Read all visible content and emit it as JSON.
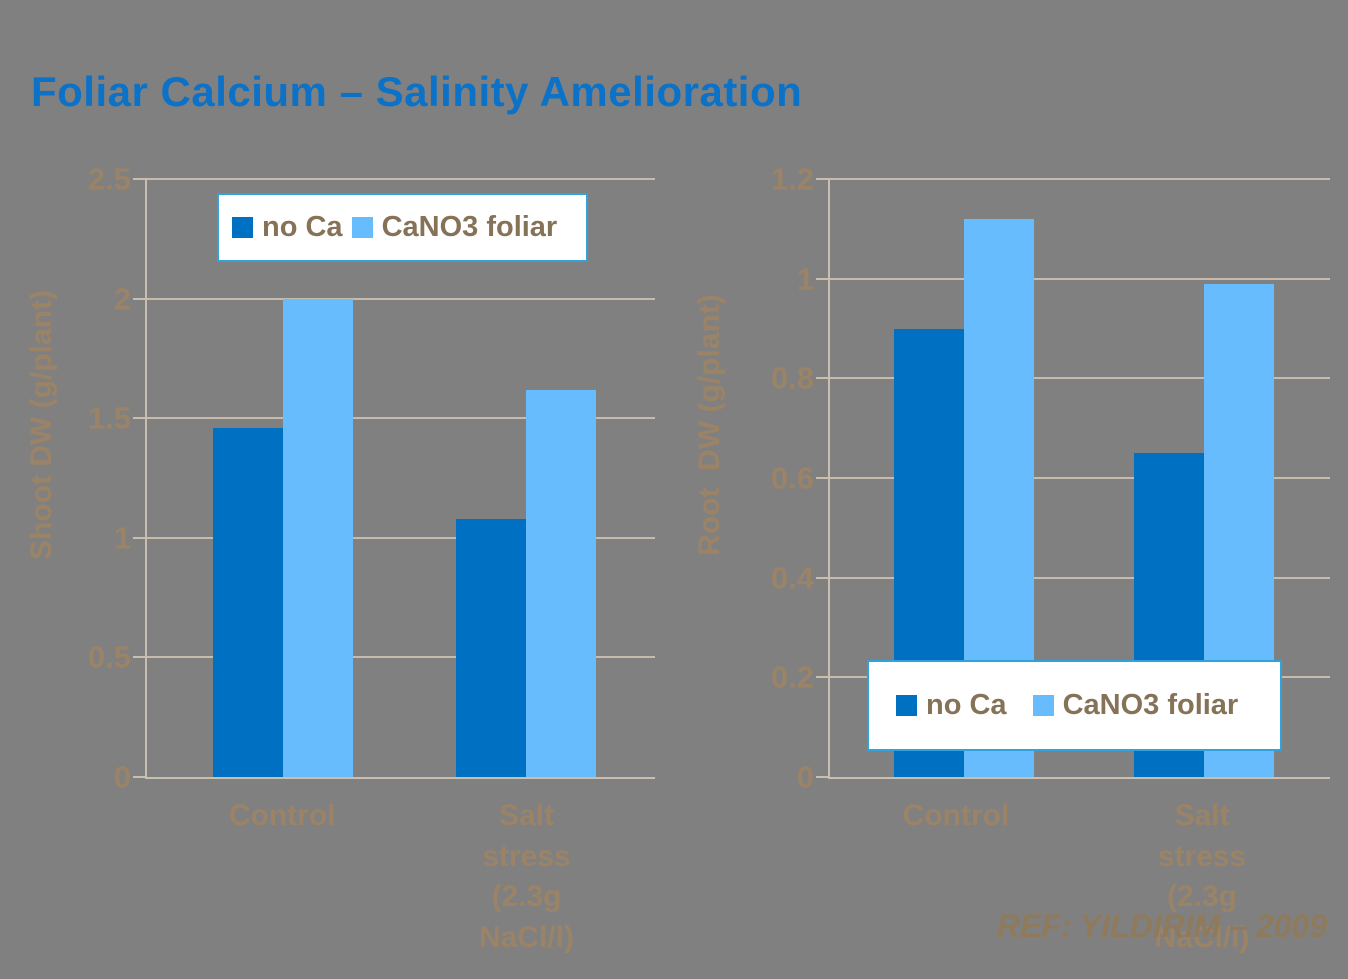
{
  "slide": {
    "title": "Foliar Calcium – Salinity Amelioration",
    "reference": "REF: YILDIRIM – 2009"
  },
  "colors": {
    "background": "#808080",
    "title_text": "#0B72C8",
    "axis_text": "#9A8366",
    "legend_text": "#857257",
    "reference_text": "#8F7A5C",
    "gridline": "#C6BCAE",
    "legend_border": "#2FA3DC",
    "legend_background": "#FFFFFF",
    "series_no_ca": "#0071C2",
    "series_cano3_foliar": "#66BCFC"
  },
  "chart_data": [
    {
      "type": "bar",
      "title": "",
      "xlabel": "",
      "ylabel": "Shoot DW (g/plant)",
      "ylim": [
        0,
        2.5
      ],
      "ytick_step": 0.5,
      "yticks": [
        "0",
        "0.5",
        "1",
        "1.5",
        "2",
        "2.5"
      ],
      "grid": true,
      "legend_position": "inside-top-left",
      "categories": [
        "Control",
        "Salt stress\n(2.3g NaCl/l)"
      ],
      "series": [
        {
          "name": "no Ca",
          "color": "#0071C2",
          "values": [
            1.46,
            1.08
          ]
        },
        {
          "name": "CaNO3 foliar",
          "color": "#66BCFC",
          "values": [
            2.0,
            1.62
          ]
        }
      ]
    },
    {
      "type": "bar",
      "title": "",
      "xlabel": "",
      "ylabel": "Root  DW (g/plant)",
      "ylim": [
        0,
        1.2
      ],
      "ytick_step": 0.2,
      "yticks": [
        "0",
        "0.2",
        "0.4",
        "0.6",
        "0.8",
        "1",
        "1.2"
      ],
      "grid": true,
      "legend_position": "inside-bottom",
      "categories": [
        "Control",
        "Salt stress\n(2.3g NaCl/l)"
      ],
      "series": [
        {
          "name": "no Ca",
          "color": "#0071C2",
          "values": [
            0.9,
            0.65
          ]
        },
        {
          "name": "CaNO3 foliar",
          "color": "#66BCFC",
          "values": [
            1.12,
            0.99
          ]
        }
      ]
    }
  ]
}
